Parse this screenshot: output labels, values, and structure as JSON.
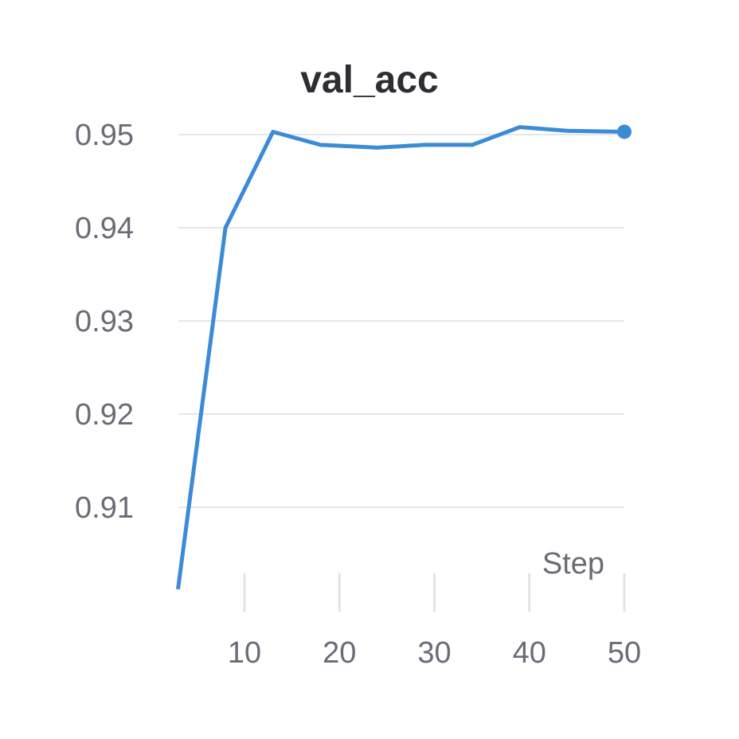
{
  "chart_data": {
    "type": "line",
    "title": "val_acc",
    "xlabel": "Step",
    "ylabel": "",
    "xlim": [
      2.5,
      50
    ],
    "ylim": [
      0.9,
      0.9528
    ],
    "x_ticks": [
      10,
      20,
      30,
      40,
      50
    ],
    "y_ticks": [
      0.91,
      0.92,
      0.93,
      0.94,
      0.95
    ],
    "x_tick_labels": [
      "10",
      "20",
      "30",
      "40",
      "50"
    ],
    "y_tick_labels": [
      "0.91",
      "0.92",
      "0.93",
      "0.94",
      "0.95"
    ],
    "grid": true,
    "legend": "none",
    "series": [
      {
        "color": "#3b8bd6",
        "x": [
          3,
          8,
          13,
          18,
          24,
          29,
          34,
          39,
          44,
          50
        ],
        "y": [
          0.9012,
          0.94,
          0.9503,
          0.9489,
          0.9486,
          0.9489,
          0.9489,
          0.9508,
          0.9504,
          0.9503
        ],
        "last_point_marker": true
      }
    ]
  }
}
